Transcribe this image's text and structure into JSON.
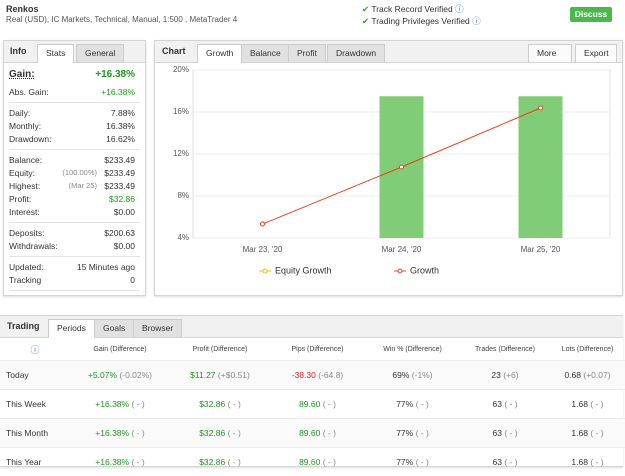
{
  "header": {
    "title": "Renkos",
    "subtitle": "Real (USD), IC Markets, Technical, Manual, 1:500 , MetaTrader 4",
    "badges": [
      "Track Record Verified",
      "Trading Privileges Verified"
    ],
    "button": "Discuss"
  },
  "info": {
    "tabs": [
      "Info",
      "Stats",
      "General"
    ],
    "gain": {
      "label": "Gain:",
      "value": "+16.38%"
    },
    "groups": [
      [
        {
          "label": "Abs. Gain:",
          "value": "+16.38%"
        }
      ],
      [
        {
          "label": "Daily:",
          "value": "7.88%"
        },
        {
          "label": "Monthly:",
          "value": "16.38%"
        },
        {
          "label": "Drawdown:",
          "value": "16.62%"
        }
      ],
      [
        {
          "label": "Balance:",
          "value": "$233.49"
        },
        {
          "label": "Equity:",
          "note": "(100.00%)",
          "value": "$233.49"
        },
        {
          "label": "Highest:",
          "note": "(Mar 25)",
          "value": "$233.49"
        },
        {
          "label": "Profit:",
          "value": "$32.86"
        },
        {
          "label": "Interest:",
          "value": "$0.00"
        }
      ],
      [
        {
          "label": "Deposits:",
          "value": "$200.63"
        },
        {
          "label": "Withdrawals:",
          "value": "$0.00"
        }
      ],
      [
        {
          "label": "Updated:",
          "value": "15 Minutes ago"
        },
        {
          "label": "Tracking",
          "value": "0"
        }
      ]
    ]
  },
  "chart_panel": {
    "tabs": [
      "Chart",
      "Growth",
      "Balance",
      "Profit",
      "Drawdown"
    ],
    "buttons": [
      "More",
      "Export"
    ]
  },
  "chart_data": {
    "type": "bar-line",
    "categories": [
      "Mar 23, '20",
      "Mar 24, '20",
      "Mar 25, '20"
    ],
    "ylim": [
      4,
      20
    ],
    "yticks": [
      {
        "value": 4,
        "label": "4%"
      },
      {
        "value": 8,
        "label": "8%"
      },
      {
        "value": 12,
        "label": "12%"
      },
      {
        "value": 16,
        "label": "16%"
      },
      {
        "value": 20,
        "label": "20%"
      }
    ],
    "grid": true,
    "bars": {
      "color": "#80cc77",
      "values": [
        null,
        17.5,
        17.5
      ]
    },
    "series": [
      {
        "name": "Equity Growth",
        "color": "#f0c000",
        "values": [
          null,
          null,
          null
        ]
      },
      {
        "name": "Growth",
        "color": "#e8401c",
        "values": [
          5.33,
          10.76,
          16.38
        ]
      }
    ]
  },
  "trading": {
    "tabs": [
      "Trading",
      "Periods",
      "Goals",
      "Browser"
    ],
    "columns": [
      "Gain (Difference)",
      "Profit (Difference)",
      "Pips (Difference)",
      "Win % (Difference)",
      "Trades (Difference)",
      "Lots (Difference)"
    ],
    "rows": [
      {
        "name": "Today",
        "cells": [
          [
            "+5.07%",
            "(-0.02%)"
          ],
          [
            "$11.27",
            "(+$0.51)"
          ],
          [
            "-38.30",
            "(-64.8)"
          ],
          [
            "69%",
            "(-1%)"
          ],
          [
            "23",
            "(+6)"
          ],
          [
            "0.68",
            "(+0.07)"
          ]
        ]
      },
      {
        "name": "This Week",
        "cells": [
          [
            "+16.38%",
            "( - )"
          ],
          [
            "$32.86",
            "( - )"
          ],
          [
            "89.60",
            "( - )"
          ],
          [
            "77%",
            "( - )"
          ],
          [
            "63",
            "( - )"
          ],
          [
            "1.68",
            "( - )"
          ]
        ]
      },
      {
        "name": "This Month",
        "cells": [
          [
            "+16.38%",
            "( - )"
          ],
          [
            "$32.86",
            "( - )"
          ],
          [
            "89.60",
            "( - )"
          ],
          [
            "77%",
            "( - )"
          ],
          [
            "63",
            "( - )"
          ],
          [
            "1.68",
            "( - )"
          ]
        ]
      },
      {
        "name": "This Year",
        "cells": [
          [
            "+16.38%",
            "( - )"
          ],
          [
            "$32.86",
            "( - )"
          ],
          [
            "89.60",
            "( - )"
          ],
          [
            "77%",
            "( - )"
          ],
          [
            "63",
            "( - )"
          ],
          [
            "1.68",
            "( - )"
          ]
        ]
      }
    ]
  }
}
